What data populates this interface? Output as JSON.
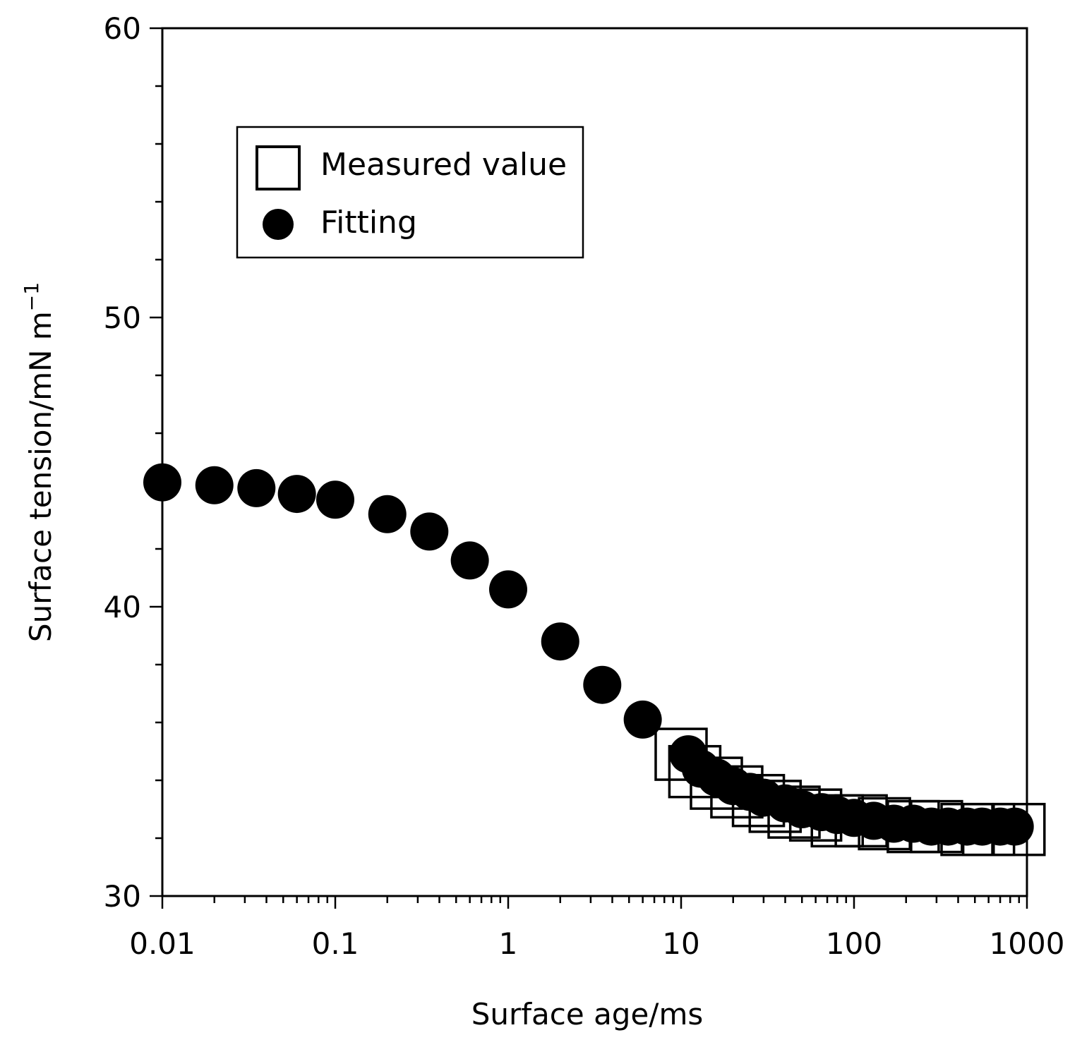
{
  "chart_data": {
    "type": "scatter",
    "xlabel": "Surface age/ms",
    "ylabel": "Surface tension/mN m",
    "ylabel_superscript": "−1",
    "x_scale": "log",
    "xlim": [
      0.01,
      1000
    ],
    "ylim": [
      30,
      60
    ],
    "x_ticks": [
      0.01,
      0.1,
      1,
      10,
      100,
      1000
    ],
    "x_tick_labels": [
      "0.01",
      "0.1",
      "1",
      "10",
      "100",
      "1000"
    ],
    "y_ticks": [
      30,
      40,
      50,
      60
    ],
    "y_tick_labels": [
      "30",
      "40",
      "50",
      "60"
    ],
    "y_minor_step": 2,
    "grid": false,
    "legend": {
      "placement": "top-left"
    },
    "series": [
      {
        "name": "Measured value",
        "marker": "open-square",
        "color": "#000000",
        "x": [
          10,
          12,
          16,
          21,
          28,
          35,
          45,
          60,
          80,
          110,
          150,
          220,
          300,
          450,
          600,
          900
        ],
        "y": [
          34.9,
          34.3,
          33.9,
          33.6,
          33.3,
          33.1,
          32.9,
          32.8,
          32.6,
          32.6,
          32.5,
          32.4,
          32.4,
          32.3,
          32.3,
          32.3
        ]
      },
      {
        "name": "Fitting",
        "marker": "filled-circle",
        "color": "#000000",
        "x": [
          0.01,
          0.02,
          0.035,
          0.06,
          0.1,
          0.2,
          0.35,
          0.6,
          1,
          2,
          3.5,
          6,
          11,
          13,
          16,
          20,
          25,
          30,
          40,
          50,
          65,
          80,
          100,
          130,
          170,
          220,
          280,
          350,
          450,
          550,
          700,
          850
        ],
        "y": [
          44.3,
          44.2,
          44.1,
          43.9,
          43.7,
          43.2,
          42.6,
          41.6,
          40.6,
          38.8,
          37.3,
          36.1,
          34.9,
          34.4,
          34.1,
          33.8,
          33.6,
          33.4,
          33.2,
          33.0,
          32.9,
          32.8,
          32.7,
          32.6,
          32.5,
          32.5,
          32.4,
          32.4,
          32.4,
          32.4,
          32.4,
          32.4
        ]
      }
    ]
  }
}
